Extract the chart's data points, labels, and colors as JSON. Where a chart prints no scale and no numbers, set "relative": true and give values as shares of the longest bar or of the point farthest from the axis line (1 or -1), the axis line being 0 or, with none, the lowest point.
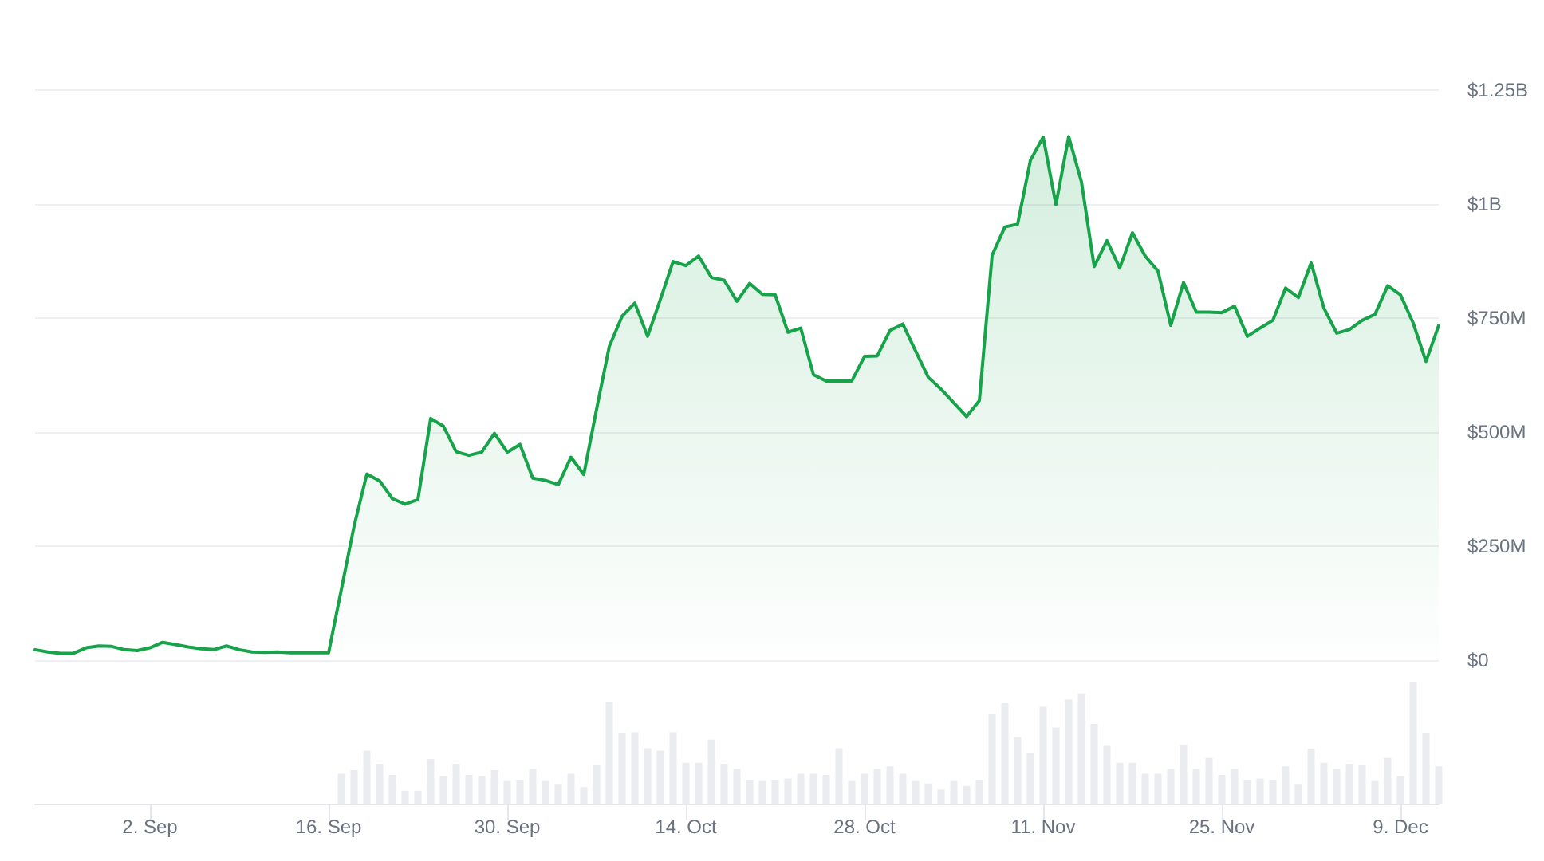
{
  "chart_data": [
    {
      "type": "area",
      "color": "#17a34a",
      "marker": "none",
      "grid": "y",
      "tick_labels": "y",
      "x": [
        "--08-24",
        "--08-25",
        "--08-26",
        "--08-27",
        "--08-28",
        "--08-29",
        "--08-30",
        "--08-31",
        "--09-01",
        "--09-02",
        "--09-03",
        "--09-04",
        "--09-05",
        "--09-06",
        "--09-07",
        "--09-08",
        "--09-09",
        "--09-10",
        "--09-11",
        "--09-12",
        "--09-13",
        "--09-14",
        "--09-15",
        "--09-16",
        "--09-17",
        "--09-18",
        "--09-19",
        "--09-20",
        "--09-21",
        "--09-22",
        "--09-23",
        "--09-24",
        "--09-25",
        "--09-26",
        "--09-27",
        "--09-28",
        "--09-29",
        "--09-30",
        "--10-01",
        "--10-02",
        "--10-03",
        "--10-04",
        "--10-05",
        "--10-06",
        "--10-07",
        "--10-08",
        "--10-09",
        "--10-10",
        "--10-11",
        "--10-12",
        "--10-13",
        "--10-14",
        "--10-15",
        "--10-16",
        "--10-17",
        "--10-18",
        "--10-19",
        "--10-20",
        "--10-21",
        "--10-22",
        "--10-23",
        "--10-24",
        "--10-25",
        "--10-26",
        "--10-27",
        "--10-28",
        "--10-29",
        "--10-30",
        "--10-31",
        "--11-01",
        "--11-02",
        "--11-03",
        "--11-04",
        "--11-05",
        "--11-06",
        "--11-07",
        "--11-08",
        "--11-09",
        "--11-10",
        "--11-11",
        "--11-12",
        "--11-13",
        "--11-14",
        "--11-15",
        "--11-16",
        "--11-17",
        "--11-18",
        "--11-19",
        "--11-20",
        "--11-21",
        "--11-22",
        "--11-23",
        "--11-24",
        "--11-25",
        "--11-26",
        "--11-27",
        "--11-28",
        "--11-29",
        "--11-30",
        "--12-01",
        "--12-02",
        "--12-03",
        "--12-04",
        "--12-05",
        "--12-06",
        "--12-07",
        "--12-08",
        "--12-09",
        "--12-10",
        "--12-11",
        "--12-12"
      ],
      "values": [
        23000000,
        18000000,
        15000000,
        15000000,
        27000000,
        31000000,
        30000000,
        23000000,
        21000000,
        27000000,
        39000000,
        34000000,
        29000000,
        25000000,
        23000000,
        31000000,
        23000000,
        18000000,
        17000000,
        18000000,
        16000000,
        16000000,
        16000000,
        16000000,
        155000000,
        294000000,
        408000000,
        393000000,
        354000000,
        342000000,
        352000000,
        530000000,
        513000000,
        457000000,
        449000000,
        456000000,
        497000000,
        456000000,
        473000000,
        399000000,
        394000000,
        385000000,
        445000000,
        407000000,
        550000000,
        688000000,
        754000000,
        783000000,
        710000000,
        791000000,
        874000000,
        865000000,
        886000000,
        839000000,
        833000000,
        787000000,
        826000000,
        802000000,
        801000000,
        719000000,
        728000000,
        626000000,
        612000000,
        612000000,
        612000000,
        666000000,
        667000000,
        723000000,
        737000000,
        678000000,
        620000000,
        594000000,
        564000000,
        534000000,
        569000000,
        888000000,
        950000000,
        956000000,
        1096000000,
        1147000000,
        999000000,
        1148000000,
        1049000000,
        863000000,
        920000000,
        860000000,
        937000000,
        886000000,
        853000000,
        734000000,
        828000000,
        763000000,
        763000000,
        762000000,
        776000000,
        710000000,
        728000000,
        745000000,
        816000000,
        795000000,
        871000000,
        772000000,
        717000000,
        725000000,
        745000000,
        758000000,
        821000000,
        801000000,
        739000000,
        655000000,
        734000000
      ],
      "xlim": [
        "--08-24",
        "--12-12"
      ],
      "ylim": [
        0,
        1250000000
      ],
      "yticks": [
        {
          "value": 0,
          "label": "$0"
        },
        {
          "value": 250000000,
          "label": "$250M"
        },
        {
          "value": 500000000,
          "label": "$500M"
        },
        {
          "value": 750000000,
          "label": "$750M"
        },
        {
          "value": 1000000000,
          "label": "$1B"
        },
        {
          "value": 1250000000,
          "label": "$1.25B"
        }
      ]
    },
    {
      "type": "bar",
      "color": "#eaecef",
      "relative": true,
      "tick_labels": "x",
      "x": [
        "--09-17",
        "--09-18",
        "--09-19",
        "--09-20",
        "--09-21",
        "--09-22",
        "--09-23",
        "--09-24",
        "--09-25",
        "--09-26",
        "--09-27",
        "--09-28",
        "--09-29",
        "--09-30",
        "--10-01",
        "--10-02",
        "--10-03",
        "--10-04",
        "--10-05",
        "--10-06",
        "--10-07",
        "--10-08",
        "--10-09",
        "--10-10",
        "--10-11",
        "--10-12",
        "--10-13",
        "--10-14",
        "--10-15",
        "--10-16",
        "--10-17",
        "--10-18",
        "--10-19",
        "--10-20",
        "--10-21",
        "--10-22",
        "--10-23",
        "--10-24",
        "--10-25",
        "--10-26",
        "--10-27",
        "--10-28",
        "--10-29",
        "--10-30",
        "--10-31",
        "--11-01",
        "--11-02",
        "--11-03",
        "--11-04",
        "--11-05",
        "--11-06",
        "--11-07",
        "--11-08",
        "--11-09",
        "--11-10",
        "--11-11",
        "--11-12",
        "--11-13",
        "--11-14",
        "--11-15",
        "--11-16",
        "--11-17",
        "--11-18",
        "--11-19",
        "--11-20",
        "--11-21",
        "--11-22",
        "--11-23",
        "--11-24",
        "--11-25",
        "--11-26",
        "--11-27",
        "--11-28",
        "--11-29",
        "--11-30",
        "--12-01",
        "--12-02",
        "--12-03",
        "--12-04",
        "--12-05",
        "--12-06",
        "--12-07",
        "--12-08",
        "--12-09",
        "--12-10",
        "--12-11",
        "--12-12"
      ],
      "values": [
        0.25,
        0.28,
        0.44,
        0.33,
        0.24,
        0.11,
        0.11,
        0.37,
        0.23,
        0.33,
        0.24,
        0.23,
        0.28,
        0.19,
        0.2,
        0.29,
        0.19,
        0.16,
        0.25,
        0.14,
        0.32,
        0.84,
        0.58,
        0.59,
        0.46,
        0.44,
        0.59,
        0.34,
        0.34,
        0.53,
        0.33,
        0.29,
        0.2,
        0.19,
        0.2,
        0.21,
        0.25,
        0.25,
        0.24,
        0.46,
        0.19,
        0.25,
        0.29,
        0.31,
        0.25,
        0.19,
        0.17,
        0.12,
        0.19,
        0.15,
        0.2,
        0.74,
        0.83,
        0.55,
        0.42,
        0.8,
        0.63,
        0.86,
        0.91,
        0.66,
        0.48,
        0.34,
        0.34,
        0.25,
        0.25,
        0.29,
        0.49,
        0.29,
        0.38,
        0.24,
        0.29,
        0.2,
        0.21,
        0.2,
        0.31,
        0.16,
        0.45,
        0.34,
        0.29,
        0.33,
        0.32,
        0.19,
        0.38,
        0.23,
        1,
        0.58,
        0.31
      ],
      "xlim": [
        "--08-24",
        "--12-12"
      ],
      "xticks": [
        {
          "value": "--09-02",
          "label": "2. Sep"
        },
        {
          "value": "--09-16",
          "label": "16. Sep"
        },
        {
          "value": "--09-30",
          "label": "30. Sep"
        },
        {
          "value": "--10-14",
          "label": "14. Oct"
        },
        {
          "value": "--10-28",
          "label": "28. Oct"
        },
        {
          "value": "--11-11",
          "label": "11. Nov"
        },
        {
          "value": "--11-25",
          "label": "25. Nov"
        },
        {
          "value": "--12-09",
          "label": "9. Dec"
        }
      ]
    }
  ]
}
